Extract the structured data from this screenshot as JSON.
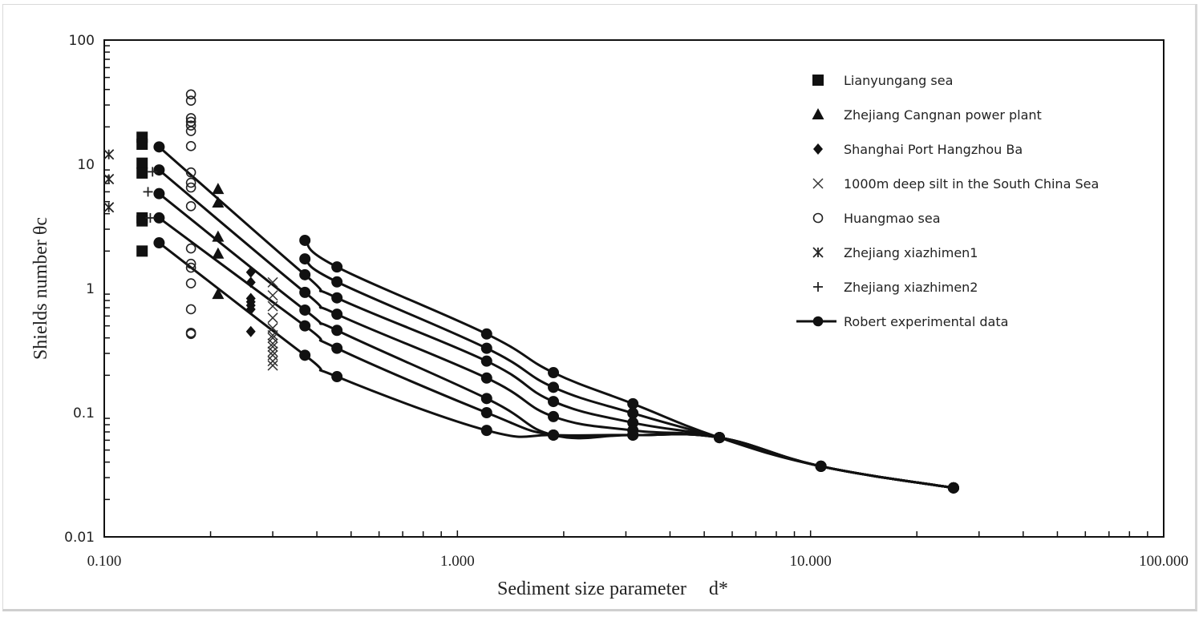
{
  "chart_data": {
    "type": "scatter",
    "title": "",
    "xlabel": "Sediment size parameter   d*",
    "ylabel": "Shields number θc",
    "xscale": "log",
    "yscale": "log",
    "xlim": [
      0.1,
      100
    ],
    "ylim": [
      0.01,
      100
    ],
    "x_ticks": [
      "0.100",
      "1.000",
      "10.000",
      "100.000"
    ],
    "y_ticks": [
      "0.01",
      "0.1",
      "1",
      "10",
      "100"
    ],
    "grid": false,
    "legend_position": "upper right (inside)",
    "series": [
      {
        "name": "Lianyungang sea",
        "marker": "square-filled",
        "x": [
          0.128,
          0.128,
          0.128,
          0.128,
          0.128,
          0.128,
          0.128
        ],
        "y": [
          16.5,
          14.5,
          10.2,
          8.5,
          3.7,
          3.5,
          2.0
        ]
      },
      {
        "name": "Zhejiang Cangnan power plant",
        "marker": "triangle-filled",
        "x": [
          0.21,
          0.21,
          0.21,
          0.21,
          0.21
        ],
        "y": [
          6.3,
          4.9,
          2.6,
          1.9,
          0.9
        ]
      },
      {
        "name": "Shanghai Port Hangzhou Ba",
        "marker": "diamond-filled",
        "x": [
          0.26,
          0.26,
          0.26,
          0.26,
          0.26,
          0.26,
          0.26
        ],
        "y": [
          1.35,
          1.12,
          0.83,
          0.78,
          0.73,
          0.68,
          0.45
        ]
      },
      {
        "name": "1000m deep silt in the South China Sea",
        "marker": "x",
        "x": [
          0.3,
          0.3,
          0.3,
          0.3,
          0.3,
          0.3,
          0.3,
          0.3,
          0.3,
          0.3,
          0.3,
          0.3,
          0.3
        ],
        "y": [
          1.12,
          0.88,
          0.72,
          0.58,
          0.48,
          0.42,
          0.4,
          0.36,
          0.34,
          0.31,
          0.29,
          0.26,
          0.24
        ]
      },
      {
        "name": "Huangmao sea",
        "marker": "circle-open",
        "x": [
          0.176,
          0.176,
          0.176,
          0.176,
          0.176,
          0.176,
          0.176,
          0.176,
          0.176,
          0.176,
          0.176,
          0.176,
          0.176,
          0.176,
          0.176,
          0.176,
          0.176,
          0.176
        ],
        "y": [
          36.5,
          32.5,
          23.5,
          22.0,
          20.5,
          18.5,
          14.0,
          8.6,
          7.1,
          6.5,
          4.6,
          2.1,
          1.58,
          1.47,
          1.1,
          0.68,
          0.44,
          0.43
        ]
      },
      {
        "name": "Zhejiang xiazhimen1",
        "marker": "asterisk",
        "x": [
          0.103,
          0.103,
          0.103
        ],
        "y": [
          12.0,
          7.6,
          4.5
        ]
      },
      {
        "name": "Zhejiang xiazhimen2",
        "marker": "plus",
        "x": [
          0.137,
          0.133,
          0.135
        ],
        "y": [
          8.7,
          6.0,
          3.7
        ]
      },
      {
        "name": "Robert experimental data",
        "marker": "circle-filled-line",
        "curves": [
          {
            "x": [
              0.37,
              0.456,
              1.21,
              1.87,
              3.14,
              5.52,
              10.7,
              25.4
            ],
            "y": [
              2.44,
              1.49,
              0.43,
              0.21,
              0.118,
              0.063,
              0.037,
              0.0248
            ]
          },
          {
            "x": [
              0.37,
              0.456,
              1.21,
              1.87,
              3.14,
              5.52,
              10.7,
              25.4
            ],
            "y": [
              1.73,
              1.13,
              0.33,
              0.16,
              0.099,
              0.063,
              0.037,
              0.0248
            ]
          },
          {
            "x": [
              0.143,
              0.37,
              0.456,
              1.21,
              1.87,
              3.14,
              5.52,
              10.7,
              25.4
            ],
            "y": [
              13.8,
              1.29,
              0.84,
              0.26,
              0.123,
              0.083,
              0.063,
              0.037,
              0.0248
            ]
          },
          {
            "x": [
              0.143,
              0.37,
              0.456,
              1.21,
              1.87,
              3.14,
              5.52,
              10.7,
              25.4
            ],
            "y": [
              9.0,
              0.93,
              0.62,
              0.19,
              0.093,
              0.072,
              0.063,
              0.037,
              0.0248
            ]
          },
          {
            "x": [
              0.143,
              0.37,
              0.456,
              1.21,
              1.87,
              3.14,
              5.52,
              10.7,
              25.4
            ],
            "y": [
              5.8,
              0.67,
              0.46,
              0.13,
              0.066,
              0.066,
              0.063,
              0.037,
              0.0248
            ]
          },
          {
            "x": [
              0.143,
              0.37,
              0.456,
              1.21,
              1.87,
              3.14,
              5.52,
              10.7,
              25.4
            ],
            "y": [
              3.7,
              0.5,
              0.33,
              0.1,
              0.066,
              0.066,
              0.063,
              0.037,
              0.0248
            ]
          },
          {
            "x": [
              0.143,
              0.37,
              0.456,
              1.21,
              1.87,
              3.14,
              5.52,
              10.7,
              25.4
            ],
            "y": [
              2.33,
              0.29,
              0.195,
              0.072,
              0.066,
              0.066,
              0.063,
              0.037,
              0.0248
            ]
          }
        ]
      }
    ]
  },
  "legend": {
    "items": [
      {
        "label": "Lianyungang sea",
        "marker": "square-filled"
      },
      {
        "label": "Zhejiang Cangnan power plant",
        "marker": "triangle-filled"
      },
      {
        "label": "Shanghai Port Hangzhou Ba",
        "marker": "diamond-filled"
      },
      {
        "label": "1000m deep silt in the South China Sea",
        "marker": "x"
      },
      {
        "label": "Huangmao sea",
        "marker": "circle-open"
      },
      {
        "label": "Zhejiang xiazhimen1",
        "marker": "asterisk"
      },
      {
        "label": "Zhejiang xiazhimen2",
        "marker": "plus"
      },
      {
        "label": "Robert experimental data",
        "marker": "circle-filled-line"
      }
    ]
  },
  "axes": {
    "xlabel_main": "Sediment size parameter",
    "xlabel_symbol": "d*",
    "ylabel": "Shields number θc"
  },
  "colors": {
    "ink": "#111111",
    "frame": "#d9d9d9",
    "background": "#ffffff"
  }
}
